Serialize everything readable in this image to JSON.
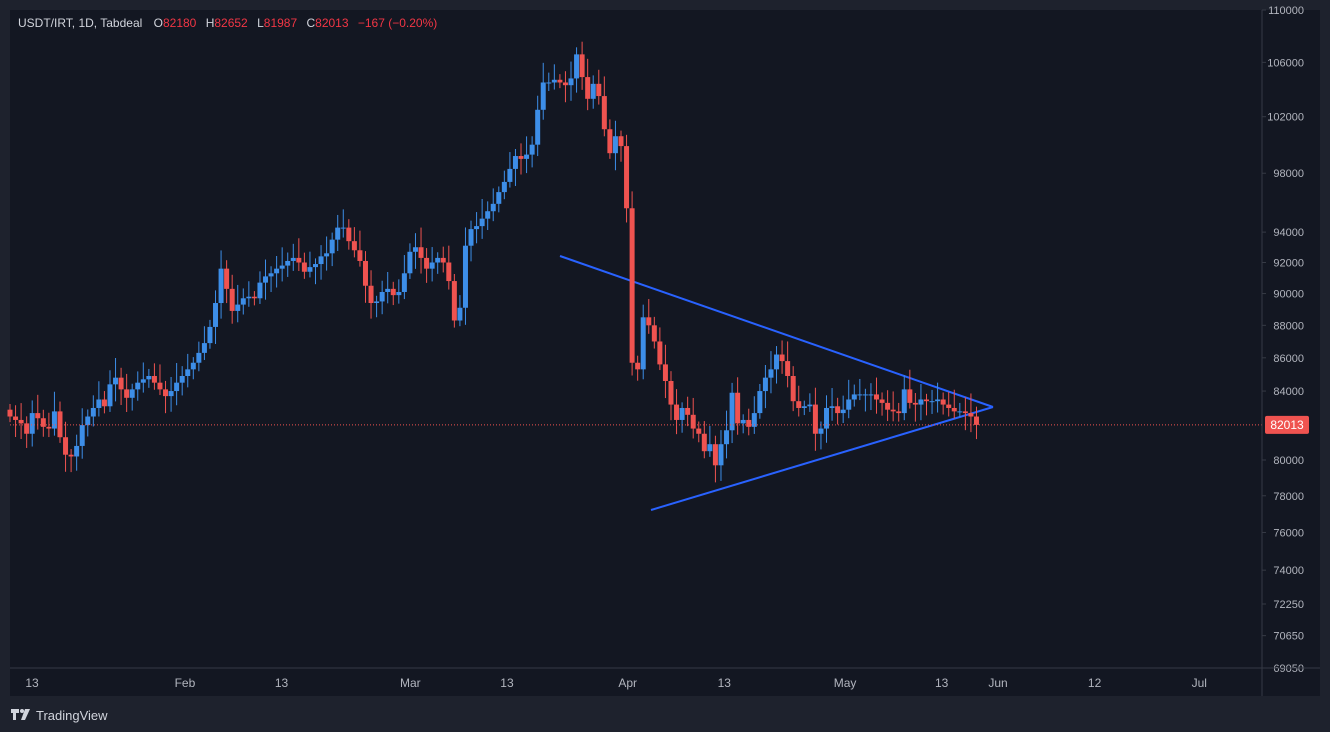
{
  "legend": {
    "symbol": "USDT/IRT, 1D, Tabdeal",
    "o_label": "O",
    "o_value": "82180",
    "h_label": "H",
    "h_value": "82652",
    "l_label": "L",
    "l_value": "81987",
    "c_label": "C",
    "c_value": "82013",
    "change": "−167 (−0.20%)"
  },
  "footer": {
    "brand": "TradingView"
  },
  "colors": {
    "up": "#3d8ee8",
    "down": "#ef5350",
    "background": "#131722",
    "frame": "#1e222d",
    "trendline": "#2962ff",
    "price_line": "#ef5350"
  },
  "chart_data": {
    "type": "candlestick",
    "scale": "log",
    "ylim": [
      69050,
      110000
    ],
    "last_price": 82013,
    "last_price_label": "82013",
    "y_ticks": [
      110000,
      106000,
      102000,
      98000,
      94000,
      92000,
      90000,
      88000,
      86000,
      84000,
      80000,
      78000,
      76000,
      74000,
      72250,
      70650,
      69050
    ],
    "x_ticks": [
      "13",
      "Feb",
      "13",
      "Mar",
      "13",
      "Apr",
      "13",
      "May",
      "13",
      "Jun",
      "12",
      "Jul"
    ],
    "x_tick_days": [
      0,
      19,
      31,
      47,
      59,
      74,
      86,
      101,
      113,
      120,
      132,
      145
    ],
    "bar_spacing_days": 0.69,
    "candles_close": [
      82500,
      82300,
      82100,
      81500,
      82700,
      82400,
      81900,
      81800,
      82800,
      81300,
      80300,
      80200,
      80800,
      82000,
      82500,
      83000,
      83500,
      83100,
      84400,
      84800,
      84100,
      83600,
      84100,
      84500,
      84700,
      84900,
      84500,
      84100,
      83700,
      84000,
      84500,
      84900,
      85300,
      85700,
      86300,
      86900,
      87900,
      89400,
      91600,
      90300,
      88900,
      89300,
      89700,
      89800,
      89700,
      90700,
      91100,
      91300,
      91600,
      91800,
      92100,
      92300,
      92000,
      91400,
      91700,
      91900,
      92400,
      92600,
      93500,
      94300,
      94300,
      93400,
      92800,
      92100,
      90500,
      89400,
      89500,
      90100,
      90300,
      89900,
      90100,
      91300,
      92700,
      93000,
      92300,
      91600,
      92000,
      92300,
      92000,
      90800,
      88300,
      89100,
      93100,
      94200,
      94400,
      94900,
      95400,
      95900,
      96700,
      97400,
      98300,
      99200,
      99000,
      99300,
      100000,
      102500,
      104500,
      104500,
      104700,
      104500,
      104300,
      104800,
      106600,
      104900,
      103300,
      104400,
      103500,
      101100,
      99400,
      100600,
      99900,
      95600,
      85700,
      85300,
      88500,
      88000,
      87000,
      85600,
      84600,
      83200,
      82300,
      83000,
      82600,
      81800,
      81500,
      80500,
      80900,
      79700,
      80900,
      81700,
      83900,
      82100,
      82300,
      81900,
      82700,
      84000,
      84800,
      85300,
      86200,
      85800,
      84900,
      83400,
      83000,
      83100,
      83200,
      81500,
      81800,
      83000,
      83100,
      82700,
      82900,
      83500,
      83800,
      83800,
      83800,
      83800,
      83500,
      83300,
      82900,
      82800,
      82700,
      84100,
      83300,
      83200,
      83500,
      83400,
      83400,
      83500,
      83200,
      83000,
      82800,
      82800,
      82700,
      82500,
      82013
    ]
  }
}
